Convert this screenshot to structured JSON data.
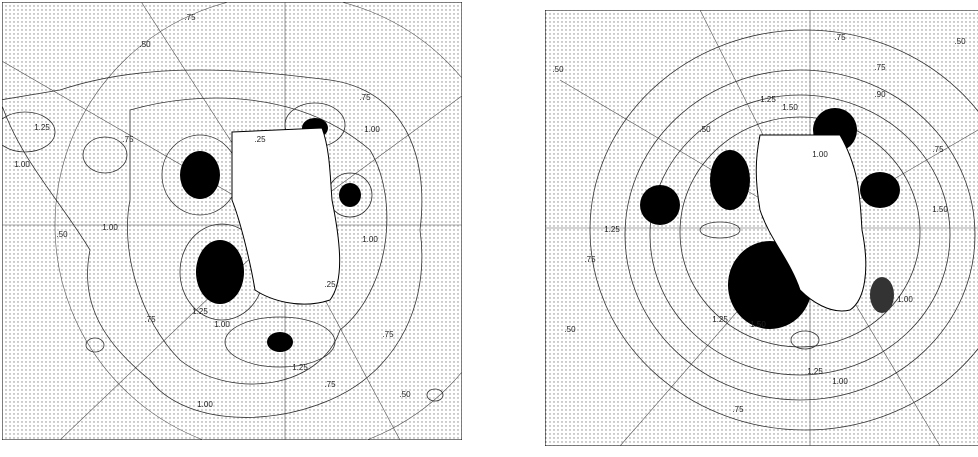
{
  "panels": [
    {
      "contour_labels": [
        ".50",
        ".75",
        ".75",
        "1.00",
        "1.25",
        "1.00",
        ".75",
        "1.00",
        ".25",
        "1.25",
        "1.00",
        ".75",
        "1.25",
        ".75",
        ".50",
        ".50",
        ".75",
        "1.00",
        "1.00",
        ".25"
      ]
    },
    {
      "contour_labels": [
        ".75",
        ".50",
        ".50",
        ".75",
        "1.25",
        "1.50",
        ".90",
        ".50",
        "1.00",
        "1.50",
        ".75",
        "1.25",
        "1.50",
        "1.25",
        "1.00",
        ".75",
        "1.25",
        ".50",
        ".75",
        "1.00"
      ]
    }
  ]
}
